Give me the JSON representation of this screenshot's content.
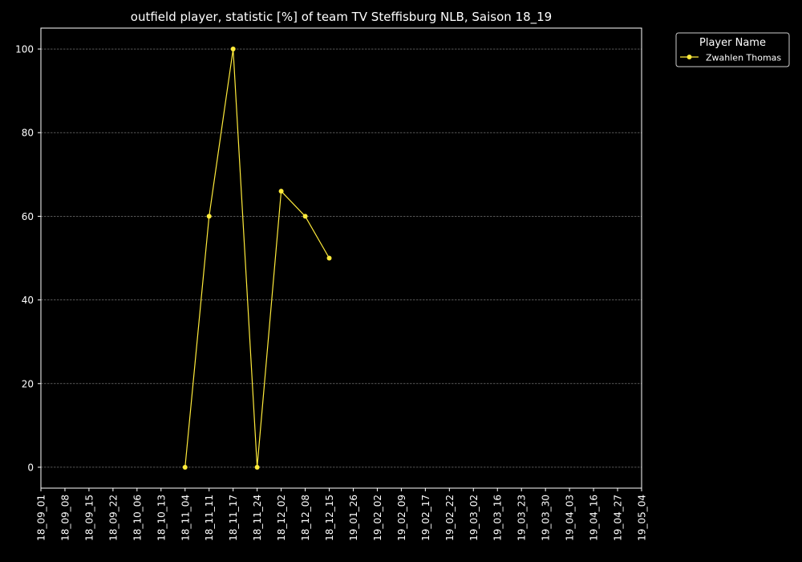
{
  "chart_data": {
    "type": "line",
    "title": "outfield player, statistic [%] of team TV Steffisburg NLB, Saison 18_19",
    "xlabel": "",
    "ylabel": "",
    "categories": [
      "18_09_01",
      "18_09_08",
      "18_09_15",
      "18_09_22",
      "18_10_06",
      "18_10_13",
      "18_11_04",
      "18_11_11",
      "18_11_17",
      "18_11_24",
      "18_12_02",
      "18_12_08",
      "18_12_15",
      "19_01_26",
      "19_02_02",
      "19_02_09",
      "19_02_17",
      "19_02_22",
      "19_03_02",
      "19_03_16",
      "19_03_23",
      "19_03_30",
      "19_04_03",
      "19_04_16",
      "19_04_27",
      "19_05_04"
    ],
    "ylim": [
      -5,
      105
    ],
    "yticks": [
      0,
      20,
      40,
      60,
      80,
      100
    ],
    "grid": true,
    "legend": {
      "title": "Player Name",
      "placement": "outside-top-right"
    },
    "series": [
      {
        "name": "Zwahlen Thomas",
        "color": "#ffeb3b",
        "values": [
          null,
          null,
          null,
          null,
          null,
          null,
          0,
          60,
          100,
          0,
          66,
          60,
          50,
          null,
          null,
          null,
          null,
          null,
          null,
          null,
          null,
          null,
          null,
          null,
          null,
          null
        ]
      }
    ],
    "background": "#000000",
    "foreground": "#ffffff",
    "grid_color": "#8a8a8a"
  }
}
